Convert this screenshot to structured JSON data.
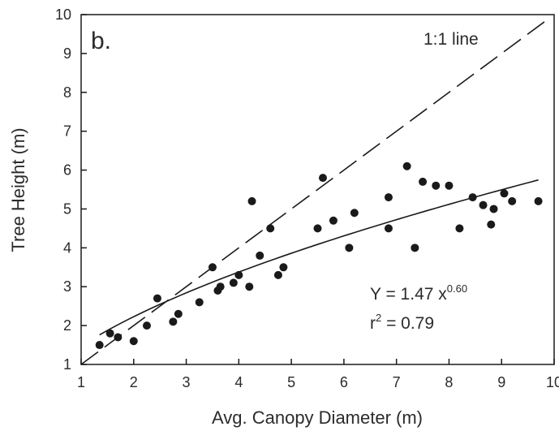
{
  "chart_data": {
    "type": "scatter",
    "panel_label": "b.",
    "xlabel": "Avg. Canopy Diameter (m)",
    "ylabel": "Tree Height (m)",
    "xlim": [
      1,
      10
    ],
    "ylim": [
      1,
      10
    ],
    "x_ticks": [
      1,
      2,
      3,
      4,
      5,
      6,
      7,
      8,
      9,
      10
    ],
    "y_ticks": [
      1,
      2,
      3,
      4,
      5,
      6,
      7,
      8,
      9,
      10
    ],
    "x_tick_labels": [
      "1",
      "2",
      "3",
      "4",
      "5",
      "6",
      "7",
      "8",
      "9",
      "10"
    ],
    "y_tick_labels": [
      "1",
      "2",
      "3",
      "4",
      "5",
      "6",
      "7",
      "8",
      "9",
      "10"
    ],
    "grid": false,
    "points": [
      {
        "x": 1.35,
        "y": 1.5
      },
      {
        "x": 1.55,
        "y": 1.8
      },
      {
        "x": 1.7,
        "y": 1.7
      },
      {
        "x": 2.0,
        "y": 1.6
      },
      {
        "x": 2.25,
        "y": 2.0
      },
      {
        "x": 2.45,
        "y": 2.7
      },
      {
        "x": 2.75,
        "y": 2.1
      },
      {
        "x": 2.85,
        "y": 2.3
      },
      {
        "x": 3.25,
        "y": 2.6
      },
      {
        "x": 3.5,
        "y": 3.5
      },
      {
        "x": 3.6,
        "y": 2.9
      },
      {
        "x": 3.65,
        "y": 3.0
      },
      {
        "x": 3.9,
        "y": 3.1
      },
      {
        "x": 4.0,
        "y": 3.3
      },
      {
        "x": 4.2,
        "y": 3.0
      },
      {
        "x": 4.25,
        "y": 5.2
      },
      {
        "x": 4.4,
        "y": 3.8
      },
      {
        "x": 4.6,
        "y": 4.5
      },
      {
        "x": 4.75,
        "y": 3.3
      },
      {
        "x": 4.85,
        "y": 3.5
      },
      {
        "x": 5.5,
        "y": 4.5
      },
      {
        "x": 5.6,
        "y": 5.8
      },
      {
        "x": 5.8,
        "y": 4.7
      },
      {
        "x": 6.1,
        "y": 4.0
      },
      {
        "x": 6.2,
        "y": 4.9
      },
      {
        "x": 6.85,
        "y": 5.3
      },
      {
        "x": 6.85,
        "y": 4.5
      },
      {
        "x": 7.2,
        "y": 6.1
      },
      {
        "x": 7.35,
        "y": 4.0
      },
      {
        "x": 7.5,
        "y": 5.7
      },
      {
        "x": 7.75,
        "y": 5.6
      },
      {
        "x": 8.0,
        "y": 5.6
      },
      {
        "x": 8.2,
        "y": 4.5
      },
      {
        "x": 8.45,
        "y": 5.3
      },
      {
        "x": 8.65,
        "y": 5.1
      },
      {
        "x": 8.8,
        "y": 4.6
      },
      {
        "x": 8.85,
        "y": 5.0
      },
      {
        "x": 9.05,
        "y": 5.4
      },
      {
        "x": 9.2,
        "y": 5.2
      },
      {
        "x": 9.7,
        "y": 5.2
      }
    ],
    "fit": {
      "type": "power",
      "a": 1.47,
      "b": 0.6,
      "x_range": [
        1.35,
        9.7
      ],
      "equation_prefix": "Y = 1.47 x",
      "equation_exponent": "0.60",
      "r2_label": "r",
      "r2_exponent": "2",
      "r2_suffix": " = 0.79"
    },
    "reference_line": {
      "label": "1:1 line",
      "style": "dashed",
      "x_range": [
        1,
        9.85
      ]
    }
  }
}
